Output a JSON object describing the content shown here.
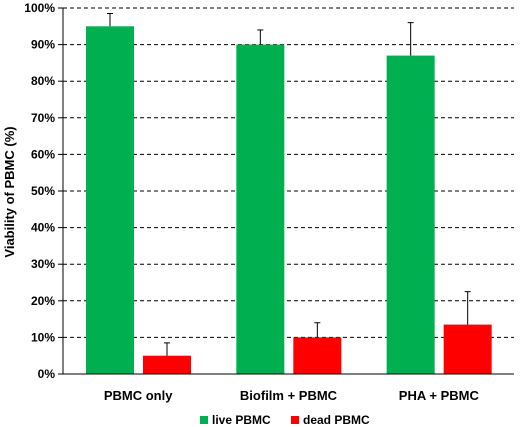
{
  "chart_data": {
    "type": "bar",
    "categories": [
      "PBMC only",
      "Biofilm + PBMC",
      "PHA + PBMC"
    ],
    "series": [
      {
        "name": "live PBMC",
        "color": "#00b050",
        "values": [
          95,
          90,
          87
        ],
        "errors": [
          3.5,
          4,
          9
        ]
      },
      {
        "name": "dead PBMC",
        "color": "#ff0000",
        "values": [
          5,
          10,
          13.5
        ],
        "errors": [
          3.5,
          4,
          9
        ]
      }
    ],
    "ylabel": "Viability of PBMC (%)",
    "ylim": [
      0,
      100
    ],
    "yticks": [
      0,
      10,
      20,
      30,
      40,
      50,
      60,
      70,
      80,
      90,
      100
    ],
    "ytick_labels": [
      "0%",
      "10%",
      "20%",
      "30%",
      "40%",
      "50%",
      "60%",
      "70%",
      "80%",
      "90%",
      "100%"
    ],
    "grid": true,
    "legend_position": "bottom"
  }
}
